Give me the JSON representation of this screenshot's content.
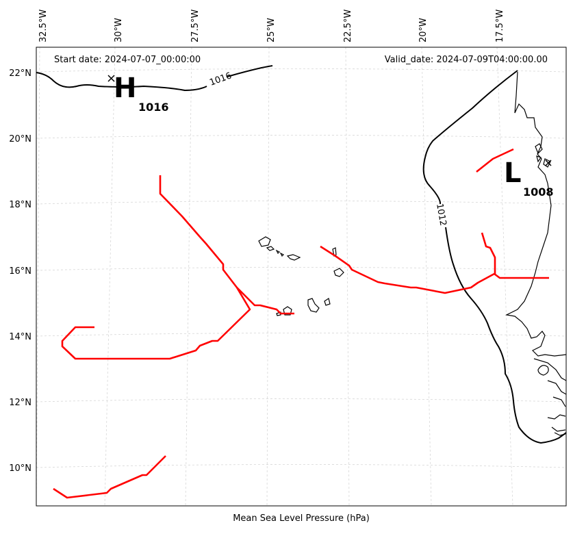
{
  "title": "Mean Sea Level Pressure (hPa)",
  "start_date": "Start date: 2024-07-07_00:00:00",
  "valid_date": "Valid_date: 2024-07-09T04:00:00.00",
  "longitude_labels": [
    "32.5°W",
    "30°W",
    "27.5°W",
    "25°W",
    "22.5°W",
    "20°W",
    "17.5°W"
  ],
  "latitude_labels": [
    "22°N",
    "20°N",
    "18°N",
    "16°N",
    "14°N",
    "12°N",
    "10°N"
  ],
  "pressure_centers": {
    "high": {
      "symbol": "H",
      "value": "1016"
    },
    "low": {
      "symbol": "L",
      "value": "1008"
    }
  },
  "isobars": [
    {
      "label": "1016"
    },
    {
      "label": "1012"
    }
  ],
  "colors": {
    "front": "#ff0000",
    "isobar": "#000000",
    "grid": "#d6d6d6"
  }
}
